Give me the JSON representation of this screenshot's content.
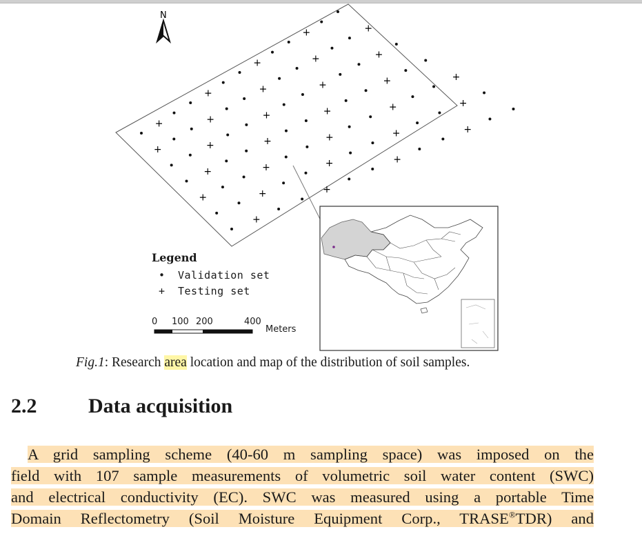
{
  "figure": {
    "north_label": "N",
    "legend": {
      "title": "Legend",
      "validation_label": "Validation set",
      "testing_label": "Testing set"
    },
    "scale": {
      "ticks": [
        "0",
        "100",
        "200",
        "400"
      ],
      "unit": "Meters"
    }
  },
  "caption": {
    "fig_ref": "Fig.1",
    "text_before": ": Research ",
    "highlight": "area",
    "text_after": " location and map of the distribution of soil samples."
  },
  "section": {
    "number": "2.2",
    "title": "Data acquisition"
  },
  "paragraph": {
    "lines": [
      "A grid sampling scheme (40-60 m sampling space) was imposed on the",
      "field with 107 sample measurements of volumetric soil water content (SWC)",
      "and electrical conductivity (EC). SWC was measured using a portable Time"
    ],
    "last_line_before": "Domain Reflectometry (Soil Moisture Equipment Corp., TRASE",
    "superscript": "®",
    "last_line_after": "TDR) and"
  },
  "colors": {
    "highlight_yellow": "#fff6a6",
    "highlight_orange": "#fde1b6",
    "china_region": "#d4d4d4"
  }
}
